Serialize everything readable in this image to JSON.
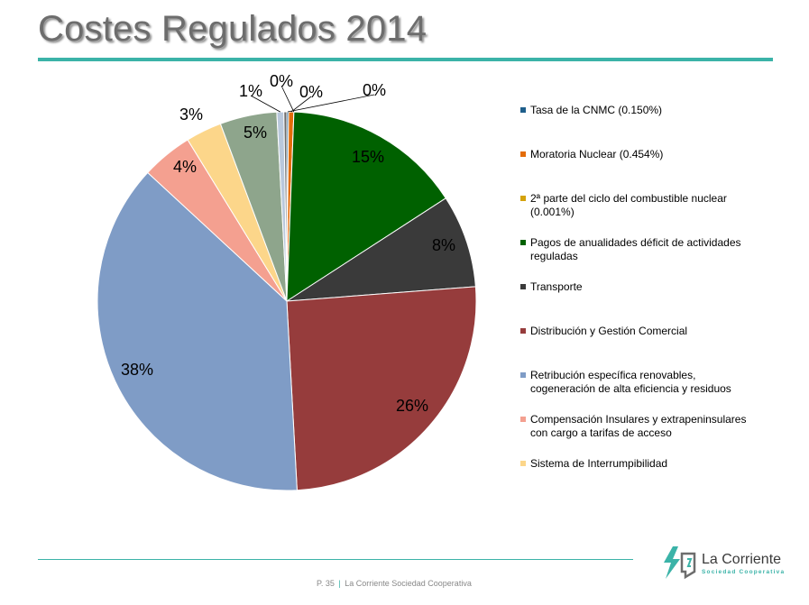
{
  "title": "Costes Regulados 2014",
  "footer": {
    "page": "P. 35",
    "separator": "|",
    "org": "La Corriente Sociedad Cooperativa"
  },
  "logo": {
    "name": "La Corriente",
    "subtitle": "Sociedad Cooperativa"
  },
  "chart_data": {
    "type": "pie",
    "start_angle_deg": 0,
    "direction": "clockwise",
    "legend_position": "right",
    "slices": [
      {
        "label": "Tasa de la CNMC (0.150%)",
        "value": 0.15,
        "data_label": "0%",
        "color": "#1f5f8b"
      },
      {
        "label": "Moratoria Nuclear (0.454%)",
        "value": 0.454,
        "data_label": "0%",
        "color": "#e36c09"
      },
      {
        "label": "2ª parte del ciclo del combustible nuclear (0.001%)",
        "value": 0.001,
        "data_label": "0%",
        "color": "#d4a20b"
      },
      {
        "label": "Pagos de anualidades déficit de actividades reguladas",
        "value": 15.4,
        "data_label": "15%",
        "color": "#006100"
      },
      {
        "label": "Transporte",
        "value": 8.0,
        "data_label": "8%",
        "color": "#3a3a3a"
      },
      {
        "label": "Distribución y Gestión Comercial",
        "value": 25.6,
        "data_label": "26%",
        "color": "#963c3c"
      },
      {
        "label": "Retribución específica renovables, cogeneración de alta eficiencia y residuos",
        "value": 38.1,
        "data_label": "38%",
        "color": "#7f9cc6"
      },
      {
        "label": "Compensación Insulares y extrapeninsulares con cargo a tarifas de acceso",
        "value": 4.4,
        "data_label": "4%",
        "color": "#f4a090"
      },
      {
        "label": "Sistema de Interrumpibilidad",
        "value": 3.1,
        "data_label": "3%",
        "color": "#fcd68a"
      },
      {
        "label": "",
        "value": 4.9,
        "data_label": "5%",
        "color": "#8ea58c"
      },
      {
        "label": "",
        "value": 0.6,
        "data_label": "1%",
        "color": "#b9c8dc"
      },
      {
        "label": "",
        "value": 0.25,
        "data_label": "0%",
        "color": "#6d6d6d"
      }
    ]
  }
}
